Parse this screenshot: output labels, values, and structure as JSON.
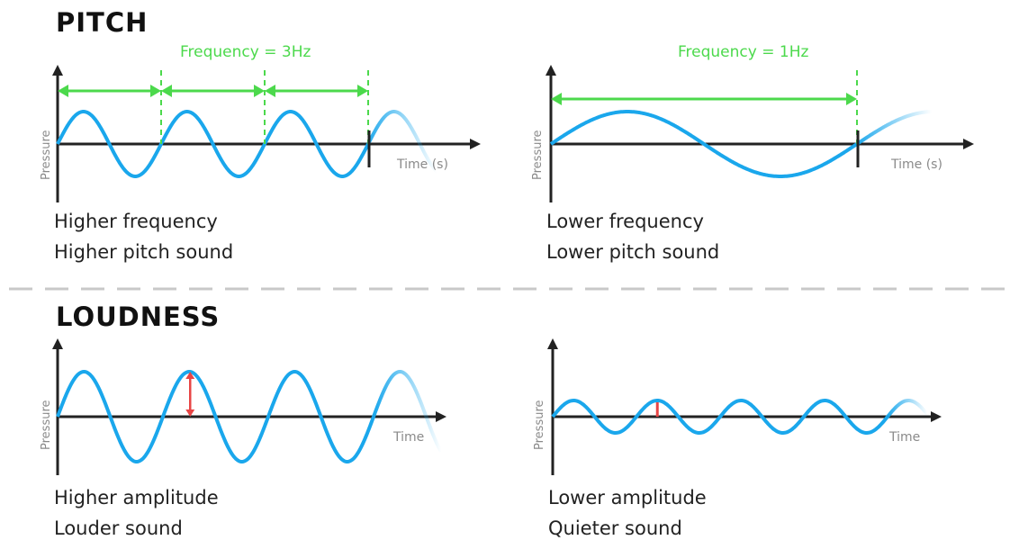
{
  "sections": {
    "pitch": {
      "title": "PITCH",
      "left": {
        "frequency_label": "Frequency = 3Hz",
        "y_label": "Pressure",
        "x_label": "Time (s)",
        "caption_line1": "Higher frequency",
        "caption_line2": "Higher pitch sound"
      },
      "right": {
        "frequency_label": "Frequency = 1Hz",
        "y_label": "Pressure",
        "x_label": "Time (s)",
        "caption_line1": "Lower frequency",
        "caption_line2": "Lower pitch sound"
      }
    },
    "loudness": {
      "title": "LOUDNESS",
      "left": {
        "y_label": "Pressure",
        "x_label": "Time",
        "caption_line1": "Higher amplitude",
        "caption_line2": "Louder sound"
      },
      "right": {
        "y_label": "Pressure",
        "x_label": "Time",
        "caption_line1": "Lower amplitude",
        "caption_line2": "Quieter sound"
      }
    }
  },
  "colors": {
    "wave": "#1aa7ec",
    "frequency_marker": "#4cd94c",
    "amplitude_marker": "#e84545",
    "axis": "#222222",
    "divider": "#c8c8c8"
  }
}
